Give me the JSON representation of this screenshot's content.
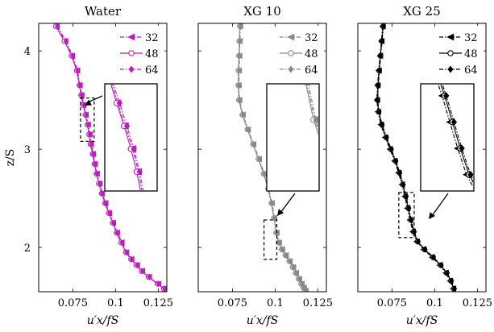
{
  "chart_data": [
    {
      "type": "line",
      "title": "Water",
      "xlabel": "u′x/fS",
      "ylabel": "z/S",
      "xlim": [
        0.055,
        0.13
      ],
      "ylim": [
        1.55,
        4.28
      ],
      "xticks": [
        0.075,
        0.1,
        0.125
      ],
      "xtick_labels": [
        "0.075",
        "0.1",
        "0.125"
      ],
      "yticks": [
        2,
        3,
        4
      ],
      "ytick_labels": [
        "2",
        "3",
        "4"
      ],
      "color": "#bb1fbb",
      "legend_position": "top-right",
      "grid": false,
      "series": [
        {
          "name": "32",
          "marker": "triangle-left",
          "dash": "dashdot",
          "x": [
            0.0655,
            0.0705,
            0.0745,
            0.0775,
            0.079,
            0.08,
            0.0812,
            0.0825,
            0.0838,
            0.0848,
            0.0855,
            0.0868,
            0.0878,
            0.089,
            0.0905,
            0.092,
            0.094,
            0.0962,
            0.0985,
            0.1008,
            0.1035,
            0.1062,
            0.1092,
            0.1125,
            0.1155,
            0.1195,
            0.125,
            0.1285
          ],
          "y": [
            4.25,
            4.1,
            3.95,
            3.8,
            3.65,
            3.55,
            3.45,
            3.35,
            3.25,
            3.15,
            3.05,
            2.95,
            2.85,
            2.75,
            2.65,
            2.55,
            2.45,
            2.35,
            2.25,
            2.15,
            2.05,
            1.95,
            1.88,
            1.82,
            1.76,
            1.7,
            1.63,
            1.58
          ]
        },
        {
          "name": "48",
          "marker": "circle",
          "dash": "solid",
          "x": [
            0.065,
            0.07,
            0.0742,
            0.0772,
            0.0788,
            0.0798,
            0.081,
            0.0823,
            0.0835,
            0.0845,
            0.0853,
            0.0865,
            0.0876,
            0.0888,
            0.0902,
            0.0918,
            0.0938,
            0.096,
            0.0983,
            0.1005,
            0.1032,
            0.106,
            0.109,
            0.1122,
            0.1152,
            0.1192,
            0.1245,
            0.1282
          ],
          "y": [
            4.25,
            4.1,
            3.95,
            3.8,
            3.65,
            3.55,
            3.45,
            3.35,
            3.25,
            3.15,
            3.05,
            2.95,
            2.85,
            2.75,
            2.65,
            2.55,
            2.45,
            2.35,
            2.25,
            2.15,
            2.05,
            1.95,
            1.88,
            1.82,
            1.76,
            1.7,
            1.63,
            1.58
          ]
        },
        {
          "name": "64",
          "marker": "diamond",
          "dash": "dashdot",
          "x": [
            0.066,
            0.071,
            0.0748,
            0.0778,
            0.0792,
            0.0802,
            0.0815,
            0.0828,
            0.084,
            0.085,
            0.0858,
            0.087,
            0.088,
            0.0892,
            0.0908,
            0.0922,
            0.0942,
            0.0965,
            0.0988,
            0.101,
            0.1038,
            0.1065,
            0.1095,
            0.1128,
            0.1158,
            0.1198,
            0.1252,
            0.1288
          ],
          "y": [
            4.25,
            4.1,
            3.95,
            3.8,
            3.65,
            3.55,
            3.45,
            3.35,
            3.25,
            3.15,
            3.05,
            2.95,
            2.85,
            2.75,
            2.65,
            2.55,
            2.45,
            2.35,
            2.25,
            2.15,
            2.05,
            1.95,
            1.88,
            1.82,
            1.76,
            1.7,
            1.63,
            1.58
          ]
        }
      ],
      "zoom_region": {
        "xlim": [
          0.0795,
          0.0875
        ],
        "ylim": [
          3.08,
          3.52
        ]
      }
    },
    {
      "type": "line",
      "title": "XG 10",
      "xlabel": "u′x/fS",
      "ylabel": "",
      "xlim": [
        0.055,
        0.13
      ],
      "ylim": [
        1.55,
        4.28
      ],
      "xticks": [
        0.075,
        0.1,
        0.125
      ],
      "xtick_labels": [
        "0.075",
        "0.1",
        "0.125"
      ],
      "color": "#888888",
      "legend_position": "top-right",
      "grid": false,
      "series": [
        {
          "name": "32",
          "marker": "triangle-left",
          "dash": "dashdot",
          "x": [
            0.0795,
            0.0792,
            0.079,
            0.0788,
            0.0786,
            0.079,
            0.081,
            0.084,
            0.0872,
            0.0905,
            0.0935,
            0.096,
            0.098,
            0.0995,
            0.1008,
            0.1022,
            0.104,
            0.1062,
            0.1085,
            0.1105,
            0.1122,
            0.114,
            0.1155,
            0.1168,
            0.1178
          ],
          "y": [
            4.25,
            4.1,
            3.95,
            3.8,
            3.65,
            3.5,
            3.35,
            3.2,
            3.05,
            2.9,
            2.75,
            2.6,
            2.45,
            2.3,
            2.15,
            2.05,
            1.98,
            1.92,
            1.86,
            1.8,
            1.74,
            1.68,
            1.63,
            1.59,
            1.56
          ]
        },
        {
          "name": "48",
          "marker": "circle",
          "dash": "solid",
          "x": [
            0.0793,
            0.079,
            0.0788,
            0.0785,
            0.0784,
            0.0788,
            0.0808,
            0.0838,
            0.087,
            0.0902,
            0.0932,
            0.0958,
            0.0978,
            0.0993,
            0.1006,
            0.102,
            0.1038,
            0.106,
            0.1082,
            0.1102,
            0.112,
            0.1138,
            0.1152,
            0.1165,
            0.1175
          ],
          "y": [
            4.25,
            4.1,
            3.95,
            3.8,
            3.65,
            3.5,
            3.35,
            3.2,
            3.05,
            2.9,
            2.75,
            2.6,
            2.45,
            2.3,
            2.15,
            2.05,
            1.98,
            1.92,
            1.86,
            1.8,
            1.74,
            1.68,
            1.63,
            1.59,
            1.56
          ]
        },
        {
          "name": "64",
          "marker": "diamond",
          "dash": "dashdot",
          "x": [
            0.0797,
            0.0794,
            0.0792,
            0.079,
            0.0788,
            0.0792,
            0.0812,
            0.0842,
            0.0874,
            0.0907,
            0.0937,
            0.0962,
            0.0982,
            0.0997,
            0.101,
            0.1024,
            0.1042,
            0.1064,
            0.1087,
            0.1107,
            0.1124,
            0.1142,
            0.1157,
            0.117,
            0.118
          ],
          "y": [
            4.25,
            4.1,
            3.95,
            3.8,
            3.65,
            3.5,
            3.35,
            3.2,
            3.05,
            2.9,
            2.75,
            2.6,
            2.45,
            2.3,
            2.15,
            2.05,
            1.98,
            1.92,
            1.86,
            1.8,
            1.74,
            1.68,
            1.63,
            1.59,
            1.56
          ]
        }
      ],
      "zoom_region": {
        "xlim": [
          0.0935,
          0.101
        ],
        "ylim": [
          1.88,
          2.28
        ]
      }
    },
    {
      "type": "line",
      "title": "XG 25",
      "xlabel": "u′x/fS",
      "ylabel": "",
      "xlim": [
        0.055,
        0.13
      ],
      "ylim": [
        1.55,
        4.28
      ],
      "xticks": [
        0.075,
        0.1,
        0.125
      ],
      "xtick_labels": [
        "0.075",
        "0.1",
        "0.125"
      ],
      "color": "#000000",
      "legend_position": "top-right",
      "grid": false,
      "series": [
        {
          "name": "32",
          "marker": "triangle-left",
          "dash": "dashdot",
          "x": [
            0.0695,
            0.0688,
            0.068,
            0.0672,
            0.0665,
            0.0662,
            0.0668,
            0.0685,
            0.071,
            0.0738,
            0.0765,
            0.0788,
            0.0808,
            0.0825,
            0.084,
            0.0855,
            0.0872,
            0.0895,
            0.0935,
            0.0985,
            0.103,
            0.1065,
            0.109,
            0.1108
          ],
          "y": [
            4.25,
            4.1,
            3.95,
            3.8,
            3.65,
            3.5,
            3.38,
            3.25,
            3.12,
            3.0,
            2.88,
            2.76,
            2.64,
            2.52,
            2.4,
            2.28,
            2.16,
            2.06,
            1.98,
            1.9,
            1.82,
            1.74,
            1.66,
            1.58
          ]
        },
        {
          "name": "48",
          "marker": "circle",
          "dash": "solid",
          "x": [
            0.0698,
            0.069,
            0.0682,
            0.0675,
            0.0668,
            0.0665,
            0.0672,
            0.069,
            0.0715,
            0.0743,
            0.077,
            0.0793,
            0.0813,
            0.083,
            0.0845,
            0.086,
            0.0877,
            0.09,
            0.094,
            0.099,
            0.1035,
            0.107,
            0.1095,
            0.1112
          ],
          "y": [
            4.25,
            4.1,
            3.95,
            3.8,
            3.65,
            3.5,
            3.38,
            3.25,
            3.12,
            3.0,
            2.88,
            2.76,
            2.64,
            2.52,
            2.4,
            2.28,
            2.16,
            2.06,
            1.98,
            1.9,
            1.82,
            1.74,
            1.66,
            1.58
          ]
        },
        {
          "name": "64",
          "marker": "diamond",
          "dash": "dashdot",
          "x": [
            0.07,
            0.0692,
            0.0684,
            0.0677,
            0.067,
            0.0667,
            0.0674,
            0.0692,
            0.0718,
            0.0746,
            0.0773,
            0.0796,
            0.0816,
            0.0833,
            0.0848,
            0.0863,
            0.088,
            0.0903,
            0.0943,
            0.0993,
            0.1038,
            0.1073,
            0.1098,
            0.1115
          ],
          "y": [
            4.25,
            4.1,
            3.95,
            3.8,
            3.65,
            3.5,
            3.38,
            3.25,
            3.12,
            3.0,
            2.88,
            2.76,
            2.64,
            2.52,
            2.4,
            2.28,
            2.16,
            2.06,
            1.98,
            1.9,
            1.82,
            1.74,
            1.66,
            1.58
          ]
        }
      ],
      "zoom_region": {
        "xlim": [
          0.079,
          0.088
        ],
        "ylim": [
          2.1,
          2.56
        ]
      }
    }
  ]
}
